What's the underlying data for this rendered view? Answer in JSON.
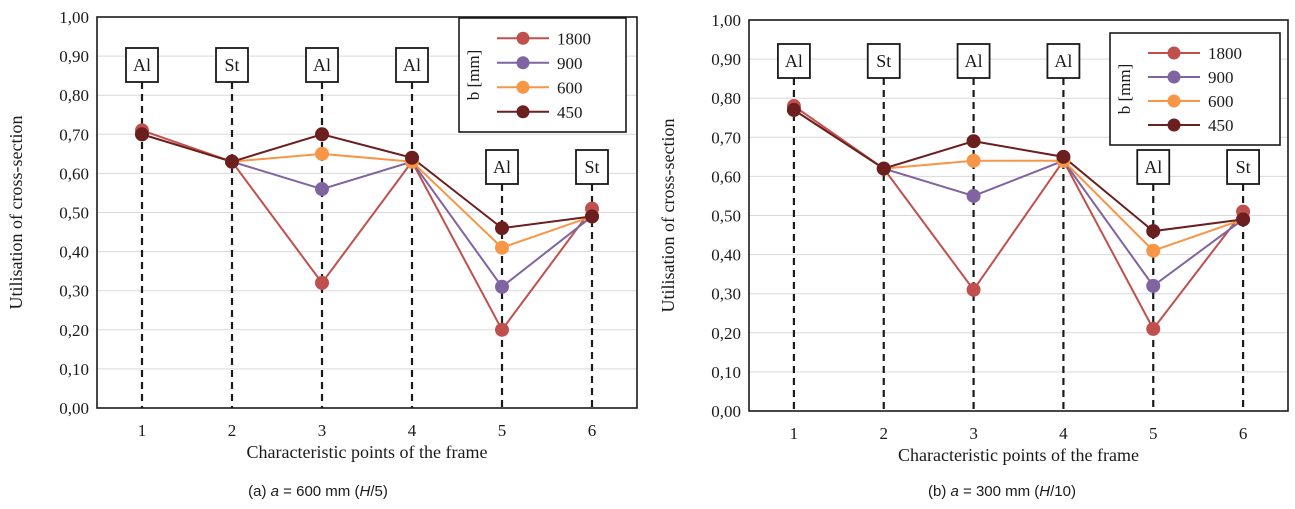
{
  "charts": [
    {
      "caption": {
        "pre": "(a) ",
        "a": "a",
        "mid": " = 600 mm (",
        "h": "H",
        "post": "/5)"
      },
      "chart_data": {
        "type": "line",
        "xlabel": "Characteristic points of the frame",
        "ylabel": "Utilisation of cross-section",
        "categories": [
          "1",
          "2",
          "3",
          "4",
          "5",
          "6"
        ],
        "ylim": [
          0,
          1
        ],
        "yticks": [
          "0,00",
          "0,10",
          "0,20",
          "0,30",
          "0,40",
          "0,50",
          "0,60",
          "0,70",
          "0,80",
          "0,90",
          "1,00"
        ],
        "legend_title": "b [mm]",
        "legend_position": "top-right",
        "grid": true,
        "series": [
          {
            "name": "1800",
            "color": "#c0504d",
            "values": [
              0.71,
              0.63,
              0.32,
              0.63,
              0.2,
              0.51
            ]
          },
          {
            "name": "900",
            "color": "#8064a2",
            "values": [
              0.7,
              0.63,
              0.56,
              0.63,
              0.31,
              0.49
            ]
          },
          {
            "name": "600",
            "color": "#f79646",
            "values": [
              0.7,
              0.63,
              0.65,
              0.63,
              0.41,
              0.49
            ]
          },
          {
            "name": "450",
            "color": "#6b1f1f",
            "values": [
              0.7,
              0.63,
              0.7,
              0.64,
              0.46,
              0.49
            ]
          }
        ],
        "annotations": [
          {
            "x": "1",
            "label": "Al",
            "level": "high"
          },
          {
            "x": "2",
            "label": "St",
            "level": "high"
          },
          {
            "x": "3",
            "label": "Al",
            "level": "high"
          },
          {
            "x": "4",
            "label": "Al",
            "level": "high"
          },
          {
            "x": "5",
            "label": "Al",
            "level": "low"
          },
          {
            "x": "6",
            "label": "St",
            "level": "low"
          }
        ]
      }
    },
    {
      "caption": {
        "pre": "(b) ",
        "a": "a",
        "mid": " = 300 mm (",
        "h": "H",
        "post": "/10)"
      },
      "chart_data": {
        "type": "line",
        "xlabel": "Characteristic points of the frame",
        "ylabel": "Utilisation of cross-section",
        "categories": [
          "1",
          "2",
          "3",
          "4",
          "5",
          "6"
        ],
        "ylim": [
          0,
          1
        ],
        "yticks": [
          "0,00",
          "0,10",
          "0,20",
          "0,30",
          "0,40",
          "0,50",
          "0,60",
          "0,70",
          "0,80",
          "0,90",
          "1,00"
        ],
        "legend_title": "b [mm]",
        "legend_position": "top-right",
        "grid": true,
        "series": [
          {
            "name": "1800",
            "color": "#c0504d",
            "values": [
              0.78,
              0.62,
              0.31,
              0.64,
              0.21,
              0.51
            ]
          },
          {
            "name": "900",
            "color": "#8064a2",
            "values": [
              0.77,
              0.62,
              0.55,
              0.64,
              0.32,
              0.49
            ]
          },
          {
            "name": "600",
            "color": "#f79646",
            "values": [
              0.77,
              0.62,
              0.64,
              0.64,
              0.41,
              0.49
            ]
          },
          {
            "name": "450",
            "color": "#6b1f1f",
            "values": [
              0.77,
              0.62,
              0.69,
              0.65,
              0.46,
              0.49
            ]
          }
        ],
        "annotations": [
          {
            "x": "1",
            "label": "Al",
            "level": "high"
          },
          {
            "x": "2",
            "label": "St",
            "level": "high"
          },
          {
            "x": "3",
            "label": "Al",
            "level": "high"
          },
          {
            "x": "4",
            "label": "Al",
            "level": "high"
          },
          {
            "x": "5",
            "label": "Al",
            "level": "low"
          },
          {
            "x": "6",
            "label": "St",
            "level": "low"
          }
        ]
      }
    }
  ]
}
